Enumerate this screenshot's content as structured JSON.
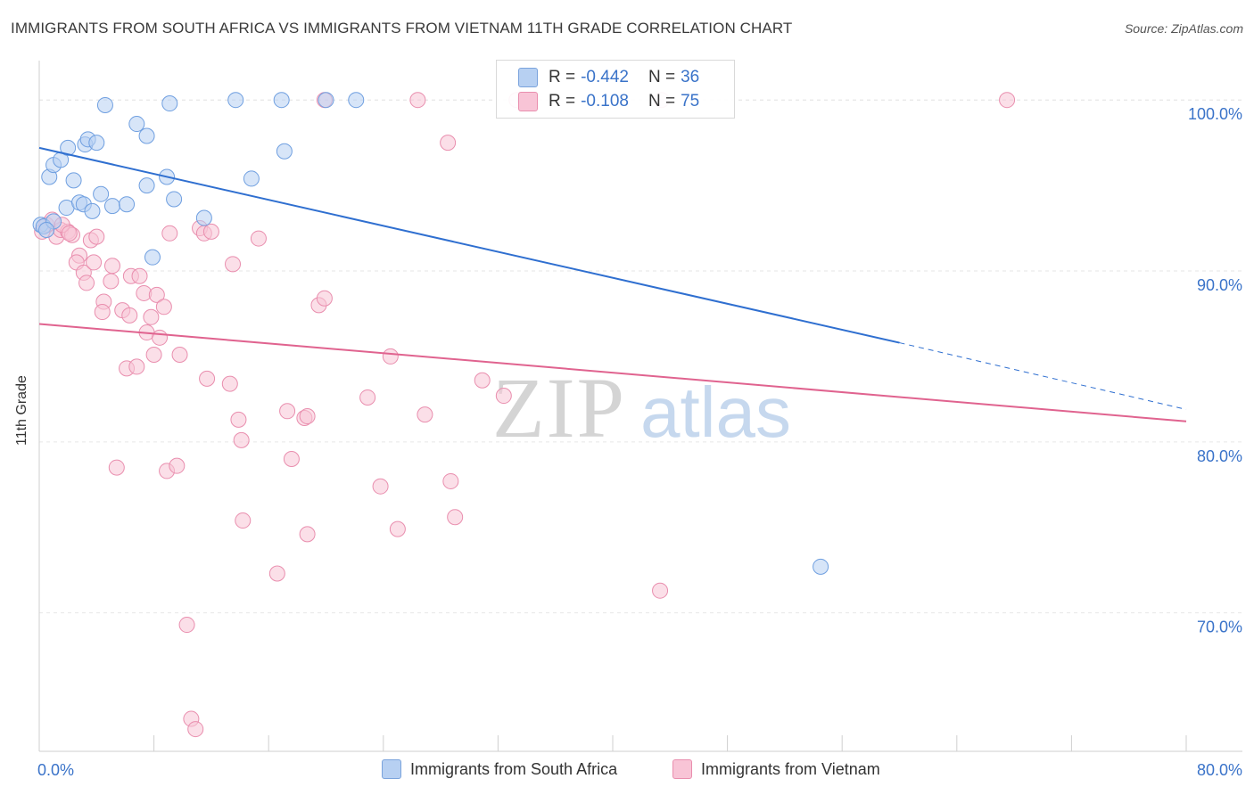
{
  "title": "IMMIGRANTS FROM SOUTH AFRICA VS IMMIGRANTS FROM VIETNAM 11TH GRADE CORRELATION CHART",
  "source": "Source: ZipAtlas.com",
  "watermark": {
    "zip": "ZIP",
    "atlas": "atlas"
  },
  "legend_top": {
    "rows": [
      {
        "r_label": "R =",
        "r_value": "-0.442",
        "n_label": "N =",
        "n_value": "36"
      },
      {
        "r_label": "R =",
        "r_value": "-0.108",
        "n_label": "N =",
        "n_value": "75"
      }
    ]
  },
  "colors": {
    "south_africa_fill": "#b7d0f2",
    "south_africa_stroke": "#6f9fe0",
    "south_africa_line": "#2f6fd0",
    "vietnam_fill": "#f8c4d6",
    "vietnam_stroke": "#e98eae",
    "vietnam_line": "#e0638f",
    "tick_label": "#3a73c9",
    "grid": "#e6e6e6"
  },
  "chart_data": {
    "type": "scatter",
    "title": "IMMIGRANTS FROM SOUTH AFRICA VS IMMIGRANTS FROM VIETNAM 11TH GRADE CORRELATION CHART",
    "xlabel": "",
    "ylabel": "11th Grade",
    "xlim": [
      0,
      80
    ],
    "ylim": [
      61.9,
      102.2
    ],
    "x_tick_labels": [
      "0.0%",
      "80.0%"
    ],
    "y_ticks": [
      70,
      80,
      90,
      100
    ],
    "y_tick_labels": [
      "70.0%",
      "80.0%",
      "90.0%",
      "100.0%"
    ],
    "grid": true,
    "legend_position": "top-center",
    "series": [
      {
        "name": "Immigrants from South Africa",
        "points": [
          [
            0.1,
            92.7
          ],
          [
            0.7,
            95.5
          ],
          [
            1.0,
            96.2
          ],
          [
            1.5,
            96.5
          ],
          [
            1.9,
            93.7
          ],
          [
            2.0,
            97.2
          ],
          [
            2.4,
            95.3
          ],
          [
            2.8,
            94.0
          ],
          [
            3.1,
            93.9
          ],
          [
            3.2,
            97.4
          ],
          [
            3.4,
            97.7
          ],
          [
            3.7,
            93.5
          ],
          [
            4.0,
            97.5
          ],
          [
            4.3,
            94.5
          ],
          [
            4.6,
            99.7
          ],
          [
            5.1,
            93.8
          ],
          [
            6.1,
            93.9
          ],
          [
            6.8,
            98.6
          ],
          [
            7.5,
            97.9
          ],
          [
            7.5,
            95.0
          ],
          [
            7.9,
            90.8
          ],
          [
            8.9,
            95.5
          ],
          [
            9.1,
            99.8
          ],
          [
            9.4,
            94.2
          ],
          [
            11.5,
            93.1
          ],
          [
            13.7,
            100.0
          ],
          [
            16.9,
            100.0
          ],
          [
            17.1,
            97.0
          ],
          [
            14.8,
            95.4
          ],
          [
            20.0,
            100.0
          ],
          [
            22.1,
            100.0
          ],
          [
            33.9,
            100.0
          ],
          [
            54.5,
            72.7
          ],
          [
            0.3,
            92.6
          ],
          [
            1.0,
            92.9
          ],
          [
            0.5,
            92.4
          ]
        ],
        "trend": {
          "x": [
            0,
            60
          ],
          "y": [
            97.2,
            85.8
          ]
        },
        "trend_dashed": {
          "x": [
            60,
            80
          ],
          "y": [
            85.8,
            81.9
          ]
        }
      },
      {
        "name": "Immigrants from Vietnam",
        "points": [
          [
            0.2,
            92.3
          ],
          [
            0.5,
            92.7
          ],
          [
            0.9,
            93.0
          ],
          [
            1.2,
            92.0
          ],
          [
            1.5,
            92.4
          ],
          [
            2.0,
            92.3
          ],
          [
            2.3,
            92.1
          ],
          [
            2.8,
            90.9
          ],
          [
            2.6,
            90.5
          ],
          [
            3.1,
            89.9
          ],
          [
            3.3,
            89.3
          ],
          [
            3.6,
            91.8
          ],
          [
            3.8,
            90.5
          ],
          [
            4.5,
            88.2
          ],
          [
            4.4,
            87.6
          ],
          [
            5.0,
            89.4
          ],
          [
            5.1,
            90.3
          ],
          [
            5.4,
            78.5
          ],
          [
            5.8,
            87.7
          ],
          [
            6.1,
            84.3
          ],
          [
            6.3,
            87.4
          ],
          [
            6.4,
            89.7
          ],
          [
            6.8,
            84.4
          ],
          [
            7.0,
            89.7
          ],
          [
            7.3,
            88.7
          ],
          [
            7.5,
            86.4
          ],
          [
            7.8,
            87.3
          ],
          [
            8.0,
            85.1
          ],
          [
            8.2,
            88.6
          ],
          [
            8.4,
            86.1
          ],
          [
            8.7,
            87.9
          ],
          [
            8.9,
            78.3
          ],
          [
            9.1,
            92.2
          ],
          [
            9.6,
            78.6
          ],
          [
            9.8,
            85.1
          ],
          [
            10.3,
            69.3
          ],
          [
            10.6,
            63.8
          ],
          [
            10.9,
            63.2
          ],
          [
            11.2,
            92.5
          ],
          [
            11.5,
            92.2
          ],
          [
            11.7,
            83.7
          ],
          [
            13.3,
            83.4
          ],
          [
            13.5,
            90.4
          ],
          [
            13.9,
            81.3
          ],
          [
            14.1,
            80.1
          ],
          [
            14.2,
            75.4
          ],
          [
            15.3,
            91.9
          ],
          [
            16.6,
            72.3
          ],
          [
            17.3,
            81.8
          ],
          [
            17.6,
            79.0
          ],
          [
            18.5,
            81.4
          ],
          [
            18.7,
            81.5
          ],
          [
            18.7,
            74.6
          ],
          [
            19.5,
            88.0
          ],
          [
            19.9,
            88.4
          ],
          [
            19.9,
            100.0
          ],
          [
            22.9,
            82.6
          ],
          [
            23.8,
            77.4
          ],
          [
            24.5,
            85.0
          ],
          [
            25.0,
            74.9
          ],
          [
            26.4,
            100.0
          ],
          [
            26.9,
            81.6
          ],
          [
            28.5,
            97.5
          ],
          [
            28.7,
            77.7
          ],
          [
            29.0,
            75.6
          ],
          [
            30.9,
            83.6
          ],
          [
            32.4,
            82.7
          ],
          [
            33.3,
            100.0
          ],
          [
            43.4,
            100.0
          ],
          [
            43.3,
            71.3
          ],
          [
            67.5,
            100.0
          ],
          [
            1.6,
            92.7
          ],
          [
            2.1,
            92.2
          ],
          [
            4.0,
            92.0
          ],
          [
            12.0,
            92.3
          ]
        ],
        "trend": {
          "x": [
            0,
            80
          ],
          "y": [
            86.9,
            81.2
          ]
        }
      }
    ]
  },
  "legend_bottom": [
    {
      "label": "Immigrants from South Africa"
    },
    {
      "label": "Immigrants from Vietnam"
    }
  ]
}
